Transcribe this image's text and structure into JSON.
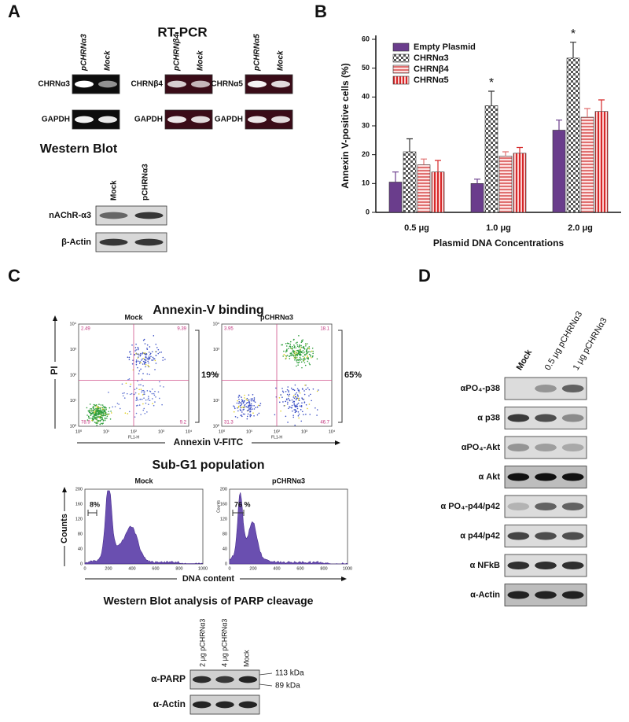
{
  "panel_a": {
    "label": "A",
    "title": "RT-PCR",
    "gels": [
      {
        "lanes": [
          "pCHRNα3",
          "Mock"
        ],
        "rows": [
          "CHRNα3",
          "GAPDH"
        ]
      },
      {
        "lanes": [
          "pCHRNβ4",
          "Mock"
        ],
        "rows": [
          "CHRNβ4",
          "GAPDH"
        ]
      },
      {
        "lanes": [
          "pCHRNα5",
          "Mock"
        ],
        "rows": [
          "CHRNα5",
          "GAPDH"
        ]
      }
    ],
    "western_title": "Western Blot",
    "western_lanes": [
      "Mock",
      "pCHRNα3"
    ],
    "western_rows": [
      "nAChR-α3",
      "β-Actin"
    ]
  },
  "panel_b": {
    "label": "B"
  },
  "chart_data": {
    "type": "bar",
    "y_label": "Annexin V-positive cells (%)",
    "x_label": "Plasmid DNA Concentrations",
    "categories": [
      "0.5 μg",
      "1.0 μg",
      "2.0 μg"
    ],
    "series": [
      {
        "name": "Empty Plasmid",
        "color": "#6a3d8c",
        "pattern": "solid",
        "values": [
          10.5,
          10,
          28.5
        ],
        "errors": [
          3.5,
          1.5,
          3.5
        ]
      },
      {
        "name": "CHRNα3",
        "color": "#555555",
        "pattern": "checker",
        "values": [
          21,
          37,
          53.5
        ],
        "errors": [
          4.5,
          5,
          5.5
        ],
        "markers": [
          null,
          "*",
          "*"
        ]
      },
      {
        "name": "CHRNβ4",
        "color": "#e07070",
        "pattern": "hstripe",
        "values": [
          16.5,
          19.5,
          33
        ],
        "errors": [
          2,
          1.5,
          3
        ]
      },
      {
        "name": "CHRNα5",
        "color": "#d62728",
        "pattern": "vstripe",
        "values": [
          14,
          20.5,
          35
        ],
        "errors": [
          4,
          2,
          4
        ]
      }
    ],
    "ylim": [
      0,
      60
    ],
    "yticks": [
      0,
      10,
      20,
      30,
      40,
      50,
      60
    ],
    "legend": "upper left"
  },
  "panel_c": {
    "label": "C",
    "annexin_title": "Annexin-V binding",
    "flow_plots": [
      {
        "title": "Mock",
        "quadrants": [
          2.49,
          9.39,
          78.9,
          9.2
        ],
        "bracket": "19%"
      },
      {
        "title": "pCHRNα3",
        "quadrants": [
          3.95,
          18.1,
          31.3,
          46.7
        ],
        "bracket": "65%"
      }
    ],
    "flow_ticks": [
      "10⁰",
      "10¹",
      "10²",
      "10³",
      "10⁴"
    ],
    "flow_inner_x": "FL1-H",
    "flow_y_label": "PI",
    "flow_x_label": "Annexin V-FITC",
    "subg1_title": "Sub-G1 population",
    "histograms": [
      {
        "title": "Mock",
        "gate": "8%"
      },
      {
        "title": "pCHRNα3",
        "gate": "76 %"
      }
    ],
    "hist_inner_y": "Counts",
    "hist_xticks": [
      0,
      200,
      400,
      600,
      800,
      1000
    ],
    "hist_yticks": [
      0,
      40,
      80,
      120,
      160,
      200
    ],
    "hist_y_label": "Counts",
    "hist_x_label": "DNA content",
    "parp_title": "Western Blot analysis of PARP cleavage",
    "parp_lanes": [
      "2 μg pCHRNα3",
      "4 μg pCHRNα3",
      "Mock"
    ],
    "parp_rows": [
      "α-PARP",
      "α-Actin"
    ],
    "parp_sizes": [
      "113 kDa",
      "89 kDa"
    ]
  },
  "panel_d": {
    "label": "D",
    "lanes": [
      "Mock",
      "0.5 μg pCHRNα3",
      "1 μg pCHRNα3"
    ],
    "rows": [
      "αPO₄-p38",
      "α p38",
      "αPO₄-Akt",
      "α Akt",
      "α PO₄-p44/p42",
      "α p44/p42",
      "α NFkB",
      "α-Actin"
    ]
  }
}
